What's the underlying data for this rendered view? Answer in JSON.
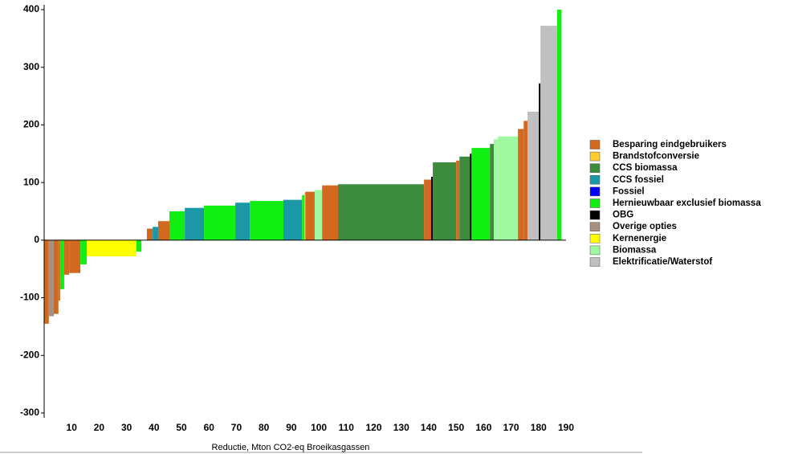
{
  "chart_data": {
    "type": "variable-width-bar",
    "x_label": "Reductie, Mton CO2-eq Broeikasgassen",
    "xlim": [
      0,
      190
    ],
    "xticks": [
      10,
      20,
      30,
      40,
      50,
      60,
      70,
      80,
      90,
      100,
      110,
      120,
      130,
      140,
      150,
      160,
      170,
      180,
      190
    ],
    "ylim": [
      -300,
      400
    ],
    "yticks": [
      -300,
      -200,
      -100,
      0,
      100,
      200,
      300,
      400
    ],
    "series": [
      {
        "name": "Besparing eindgebruikers",
        "color": "#d2691e"
      },
      {
        "name": "Brandstofconversie",
        "color": "#ffcc33"
      },
      {
        "name": "CCS biomassa",
        "color": "#3d8b3d"
      },
      {
        "name": "CCS fossiel",
        "color": "#1a98a6"
      },
      {
        "name": "Fossiel",
        "color": "#0000ff"
      },
      {
        "name": "Hernieuwbaar exclusief biomassa",
        "color": "#11ee11"
      },
      {
        "name": "OBG",
        "color": "#000000"
      },
      {
        "name": "Overige opties",
        "color": "#a89080"
      },
      {
        "name": "Kernenergie",
        "color": "#ffff00"
      },
      {
        "name": "Biomassa",
        "color": "#a0f8a0"
      },
      {
        "name": "Elektrificatie/Waterstof",
        "color": "#c0c0c0"
      }
    ],
    "bars": [
      {
        "series": 0,
        "x0": 0,
        "x1": 1.7,
        "value": -145
      },
      {
        "series": 7,
        "x0": 1.7,
        "x1": 3.5,
        "value": -132
      },
      {
        "series": 0,
        "x0": 3.5,
        "x1": 5.2,
        "value": -128
      },
      {
        "series": 0,
        "x0": 5.2,
        "x1": 5.8,
        "value": -105
      },
      {
        "series": 5,
        "x0": 5.8,
        "x1": 7.3,
        "value": -85
      },
      {
        "series": 0,
        "x0": 7.3,
        "x1": 9.1,
        "value": -60
      },
      {
        "series": 0,
        "x0": 9.1,
        "x1": 13.2,
        "value": -57
      },
      {
        "series": 5,
        "x0": 13.2,
        "x1": 15.5,
        "value": -42
      },
      {
        "series": 8,
        "x0": 15.5,
        "x1": 33.6,
        "value": -28
      },
      {
        "series": 5,
        "x0": 33.6,
        "x1": 35.4,
        "value": -20
      },
      {
        "series": 0,
        "x0": 37.4,
        "x1": 39.5,
        "value": 20
      },
      {
        "series": 3,
        "x0": 39.5,
        "x1": 41.5,
        "value": 23
      },
      {
        "series": 0,
        "x0": 41.5,
        "x1": 45.6,
        "value": 33
      },
      {
        "series": 5,
        "x0": 45.6,
        "x1": 51.2,
        "value": 50
      },
      {
        "series": 3,
        "x0": 51.2,
        "x1": 58.2,
        "value": 56
      },
      {
        "series": 5,
        "x0": 58.2,
        "x1": 69.6,
        "value": 60
      },
      {
        "series": 3,
        "x0": 69.6,
        "x1": 74.9,
        "value": 65
      },
      {
        "series": 5,
        "x0": 74.9,
        "x1": 87.1,
        "value": 68
      },
      {
        "series": 3,
        "x0": 87.1,
        "x1": 93.9,
        "value": 70
      },
      {
        "series": 5,
        "x0": 93.9,
        "x1": 94.7,
        "value": 78
      },
      {
        "series": 1,
        "x0": 94.7,
        "x1": 95.1,
        "value": 82
      },
      {
        "series": 0,
        "x0": 95.1,
        "x1": 98.5,
        "value": 84
      },
      {
        "series": 9,
        "x0": 98.5,
        "x1": 101.2,
        "value": 87
      },
      {
        "series": 0,
        "x0": 101.2,
        "x1": 107,
        "value": 95
      },
      {
        "series": 2,
        "x0": 107,
        "x1": 138.3,
        "value": 97
      },
      {
        "series": 0,
        "x0": 138.3,
        "x1": 140.9,
        "value": 105
      },
      {
        "series": 6,
        "x0": 140.9,
        "x1": 141.5,
        "value": 110
      },
      {
        "series": 2,
        "x0": 141.5,
        "x1": 150,
        "value": 135
      },
      {
        "series": 0,
        "x0": 150,
        "x1": 151.2,
        "value": 138
      },
      {
        "series": 2,
        "x0": 151.2,
        "x1": 155,
        "value": 145
      },
      {
        "series": 6,
        "x0": 155,
        "x1": 155.6,
        "value": 150
      },
      {
        "series": 5,
        "x0": 155.6,
        "x1": 162.3,
        "value": 160
      },
      {
        "series": 2,
        "x0": 162.3,
        "x1": 163.7,
        "value": 167
      },
      {
        "series": 9,
        "x0": 163.7,
        "x1": 165.2,
        "value": 175
      },
      {
        "series": 9,
        "x0": 165.2,
        "x1": 172.5,
        "value": 180
      },
      {
        "series": 0,
        "x0": 172.5,
        "x1": 174.6,
        "value": 193
      },
      {
        "series": 0,
        "x0": 174.6,
        "x1": 176,
        "value": 207
      },
      {
        "series": 10,
        "x0": 176,
        "x1": 180.1,
        "value": 223
      },
      {
        "series": 6,
        "x0": 180.1,
        "x1": 180.7,
        "value": 272
      },
      {
        "series": 10,
        "x0": 180.7,
        "x1": 186.8,
        "value": 372
      },
      {
        "series": 5,
        "x0": 186.8,
        "x1": 188.3,
        "value": 400
      }
    ]
  }
}
